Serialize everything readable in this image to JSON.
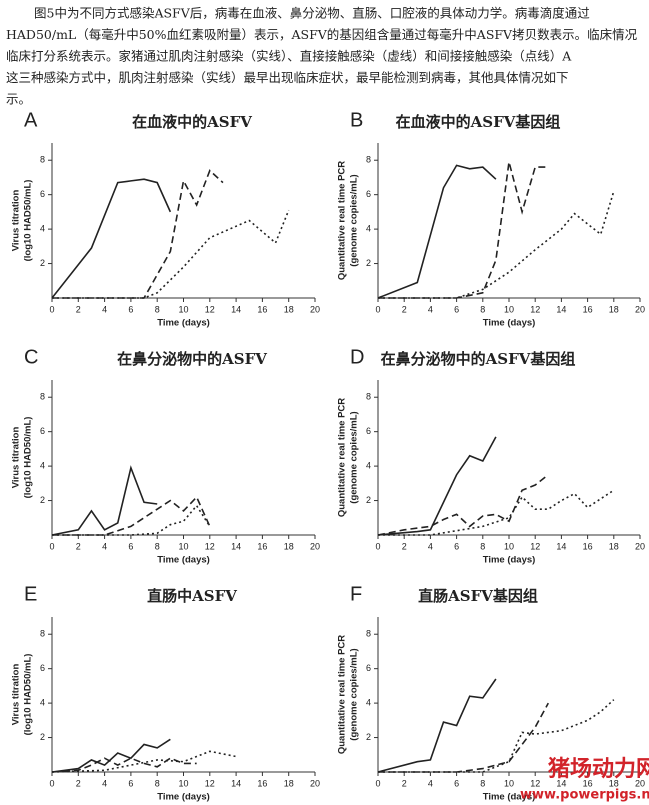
{
  "paragraph": [
    "图5中为不同方式感染ASFV后，病毒在血液、鼻分泌物、直肠、口腔液的具体动力学。病毒滴度通过",
    "HAD50/mL（每毫升中50%血红素吸附量）表示，ASFV的基因组含量通过每毫升中ASFV拷贝数表示。临床情况",
    "临床打分系统表示。家猪通过肌肉注射感染（实线）、直接接触感染（虚线）和间接接触感染（点线）A",
    "这三种感染方式中，肌肉注射感染（实线）最早出现临床症状，最早能检测到病毒，其他具体情况如下",
    "示。"
  ],
  "watermark": [
    "猪场动力网",
    "www.powerpigs.net"
  ],
  "chart_data": [
    {
      "type": "line",
      "panel": "A",
      "title": "在血液中的ASFV",
      "xlabel": "Time (days)",
      "ylabel": [
        "Virus titration",
        "(log10 HAD50/mL)"
      ],
      "xlim": [
        0,
        20
      ],
      "xticks": [
        0,
        2,
        4,
        6,
        8,
        10,
        12,
        14,
        16,
        18,
        20
      ],
      "ylim": [
        0,
        9
      ],
      "yticks": [
        2,
        4,
        6,
        8
      ],
      "series": [
        {
          "style": "solid",
          "color": "#222222",
          "x": [
            0,
            3,
            5,
            6,
            7,
            8,
            9
          ],
          "values": [
            0,
            2.9,
            6.7,
            6.8,
            6.9,
            6.7,
            5.0
          ]
        },
        {
          "style": "dashed",
          "color": "#222222",
          "x": [
            0,
            7,
            9,
            10,
            11,
            12,
            13
          ],
          "values": [
            0,
            0,
            2.7,
            6.8,
            5.4,
            7.4,
            6.7
          ]
        },
        {
          "style": "dotted",
          "color": "#222222",
          "x": [
            0,
            7,
            8,
            10,
            12,
            15,
            17,
            18
          ],
          "values": [
            0,
            0,
            0.3,
            1.8,
            3.5,
            4.5,
            3.2,
            5.1
          ]
        }
      ]
    },
    {
      "type": "line",
      "panel": "B",
      "title": "在血液中的ASFV基因组",
      "xlabel": "Time (days)",
      "ylabel": [
        "Quantitative real time PCR",
        "(genome copies/mL)"
      ],
      "xlim": [
        0,
        20
      ],
      "xticks": [
        0,
        2,
        4,
        6,
        8,
        10,
        12,
        14,
        16,
        18,
        20
      ],
      "ylim": [
        0,
        9
      ],
      "yticks": [
        2,
        4,
        6,
        8
      ],
      "series": [
        {
          "style": "solid",
          "color": "#222222",
          "x": [
            0,
            3,
            5,
            6,
            7,
            8,
            9
          ],
          "values": [
            0,
            0.9,
            6.4,
            7.7,
            7.5,
            7.6,
            6.9
          ]
        },
        {
          "style": "dashed",
          "color": "#222222",
          "x": [
            0,
            6,
            8,
            9,
            10,
            11,
            12,
            13
          ],
          "values": [
            0,
            0,
            0.3,
            2.2,
            7.9,
            5.0,
            7.6,
            7.6
          ]
        },
        {
          "style": "dotted",
          "color": "#222222",
          "x": [
            0,
            6,
            8,
            10,
            12,
            14,
            15,
            17,
            18
          ],
          "values": [
            0,
            0,
            0.5,
            1.5,
            2.8,
            4.0,
            4.9,
            3.7,
            6.2
          ]
        }
      ]
    },
    {
      "type": "line",
      "panel": "C",
      "title": "在鼻分泌物中的ASFV",
      "xlabel": "Time (days)",
      "ylabel": [
        "Virus titration",
        "(log10 HAD50/mL)"
      ],
      "xlim": [
        0,
        20
      ],
      "xticks": [
        0,
        2,
        4,
        6,
        8,
        10,
        12,
        14,
        16,
        18,
        20
      ],
      "ylim": [
        0,
        9
      ],
      "yticks": [
        2,
        4,
        6,
        8
      ],
      "series": [
        {
          "style": "solid",
          "color": "#222222",
          "x": [
            0,
            2,
            3,
            4,
            5,
            6,
            7,
            8
          ],
          "values": [
            0,
            0.3,
            1.4,
            0.3,
            0.7,
            3.9,
            1.9,
            1.8
          ]
        },
        {
          "style": "dashed",
          "color": "#222222",
          "x": [
            0,
            4,
            6,
            8,
            9,
            10,
            11,
            12
          ],
          "values": [
            0,
            0,
            0.5,
            1.5,
            2.0,
            1.4,
            2.2,
            0.5
          ]
        },
        {
          "style": "dotted",
          "color": "#222222",
          "x": [
            0,
            6,
            8,
            9,
            10,
            11,
            12
          ],
          "values": [
            0,
            0,
            0.1,
            0.6,
            0.8,
            1.7,
            0.5
          ]
        }
      ]
    },
    {
      "type": "line",
      "panel": "D",
      "title": "在鼻分泌物中的ASFV基因组",
      "xlabel": "Time (days)",
      "ylabel": [
        "Quantitative real time PCR",
        "(genome copies/mL)"
      ],
      "xlim": [
        0,
        20
      ],
      "xticks": [
        0,
        2,
        4,
        6,
        8,
        10,
        12,
        14,
        16,
        18,
        20
      ],
      "ylim": [
        0,
        9
      ],
      "yticks": [
        2,
        4,
        6,
        8
      ],
      "series": [
        {
          "style": "solid",
          "color": "#222222",
          "x": [
            0,
            3,
            4,
            6,
            7,
            8,
            9
          ],
          "values": [
            0,
            0.2,
            0.3,
            3.5,
            4.6,
            4.3,
            5.7
          ]
        },
        {
          "style": "dashed",
          "color": "#222222",
          "x": [
            0,
            2,
            4,
            5,
            6,
            7,
            8,
            9,
            10,
            11,
            12,
            13
          ],
          "values": [
            0,
            0.3,
            0.5,
            0.9,
            1.2,
            0.5,
            1.1,
            1.2,
            0.8,
            2.6,
            2.9,
            3.5
          ]
        },
        {
          "style": "dotted",
          "color": "#222222",
          "x": [
            0,
            4,
            8,
            10,
            11,
            12,
            13,
            14,
            15,
            16,
            18
          ],
          "values": [
            0,
            0,
            0.5,
            1.0,
            2.2,
            1.5,
            1.5,
            2.0,
            2.4,
            1.6,
            2.6
          ]
        }
      ]
    },
    {
      "type": "line",
      "panel": "E",
      "title": "直肠中ASFV",
      "xlabel": "Time (days)",
      "ylabel": [
        "Virus titration",
        "(log10 HAD50/mL)"
      ],
      "xlim": [
        0,
        20
      ],
      "xticks": [
        0,
        2,
        4,
        6,
        8,
        10,
        12,
        14,
        16,
        18,
        20
      ],
      "ylim": [
        0,
        9
      ],
      "yticks": [
        2,
        4,
        6,
        8
      ],
      "series": [
        {
          "style": "solid",
          "color": "#222222",
          "x": [
            0,
            2,
            3,
            4,
            5,
            6,
            7,
            8,
            9
          ],
          "values": [
            0,
            0.2,
            0.7,
            0.4,
            1.1,
            0.8,
            1.6,
            1.4,
            1.9
          ]
        },
        {
          "style": "dashed",
          "color": "#222222",
          "x": [
            0,
            2,
            3,
            4,
            5,
            6,
            7,
            8,
            9,
            10,
            11
          ],
          "values": [
            0,
            0.1,
            0.4,
            0.8,
            0.4,
            0.8,
            0.5,
            0.3,
            0.8,
            0.5,
            0.5
          ]
        },
        {
          "style": "dotted",
          "color": "#222222",
          "x": [
            0,
            4,
            6,
            8,
            10,
            12,
            14
          ],
          "values": [
            0,
            0.1,
            0.4,
            0.7,
            0.6,
            1.2,
            0.9
          ]
        }
      ]
    },
    {
      "type": "line",
      "panel": "F",
      "title": "直肠ASFV基因组",
      "xlabel": "Time (days)",
      "ylabel": [
        "Quantitative real time PCR",
        "(genome copies/mL)"
      ],
      "xlim": [
        0,
        20
      ],
      "xticks": [
        0,
        2,
        4,
        6,
        8,
        10,
        12,
        14,
        16,
        18,
        20
      ],
      "ylim": [
        0,
        9
      ],
      "yticks": [
        2,
        4,
        6,
        8
      ],
      "series": [
        {
          "style": "solid",
          "color": "#222222",
          "x": [
            0,
            3,
            4,
            5,
            6,
            7,
            8,
            9
          ],
          "values": [
            0,
            0.6,
            0.7,
            2.9,
            2.7,
            4.4,
            4.3,
            5.4
          ]
        },
        {
          "style": "dashed",
          "color": "#222222",
          "x": [
            0,
            6,
            8,
            10,
            11,
            12,
            13
          ],
          "values": [
            0,
            0,
            0.2,
            0.6,
            1.6,
            2.6,
            4.0
          ]
        },
        {
          "style": "dotted",
          "color": "#222222",
          "x": [
            0,
            8,
            10,
            11,
            12,
            14,
            16,
            17,
            18
          ],
          "values": [
            0,
            0,
            0.6,
            2.3,
            2.2,
            2.4,
            3.0,
            3.5,
            4.2
          ]
        }
      ]
    }
  ]
}
